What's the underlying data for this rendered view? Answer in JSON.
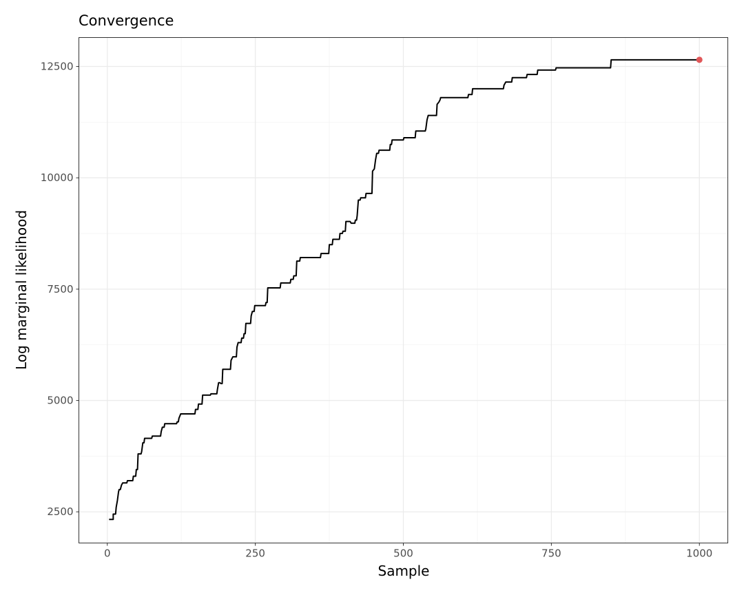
{
  "chart_data": {
    "type": "line",
    "title": "Convergence",
    "xlabel": "Sample",
    "ylabel": "Log marginal likelihood",
    "xlim": [
      -48,
      1048
    ],
    "ylim": [
      1800,
      13150
    ],
    "x_ticks": [
      0,
      250,
      500,
      750,
      1000
    ],
    "y_ticks": [
      2500,
      5000,
      7500,
      10000,
      12500
    ],
    "grid": true,
    "line_color": "#000000",
    "highlight_color": "#E15759",
    "series": [
      {
        "style": "step",
        "points": [
          [
            3,
            2330
          ],
          [
            10,
            2330
          ],
          [
            10,
            2450
          ],
          [
            14,
            2450
          ],
          [
            15,
            2600
          ],
          [
            17,
            2750
          ],
          [
            19,
            2950
          ],
          [
            20,
            3000
          ],
          [
            22,
            3000
          ],
          [
            24,
            3100
          ],
          [
            26,
            3150
          ],
          [
            33,
            3150
          ],
          [
            34,
            3200
          ],
          [
            43,
            3200
          ],
          [
            44,
            3300
          ],
          [
            48,
            3300
          ],
          [
            49,
            3450
          ],
          [
            51,
            3450
          ],
          [
            52,
            3800
          ],
          [
            57,
            3800
          ],
          [
            58,
            3850
          ],
          [
            60,
            4050
          ],
          [
            62,
            4050
          ],
          [
            63,
            4150
          ],
          [
            75,
            4150
          ],
          [
            76,
            4200
          ],
          [
            90,
            4200
          ],
          [
            91,
            4300
          ],
          [
            93,
            4400
          ],
          [
            96,
            4400
          ],
          [
            97,
            4480
          ],
          [
            117,
            4480
          ],
          [
            118,
            4520
          ],
          [
            120,
            4520
          ],
          [
            121,
            4600
          ],
          [
            124,
            4700
          ],
          [
            148,
            4700
          ],
          [
            149,
            4800
          ],
          [
            153,
            4800
          ],
          [
            154,
            4920
          ],
          [
            160,
            4920
          ],
          [
            161,
            5120
          ],
          [
            174,
            5120
          ],
          [
            175,
            5150
          ],
          [
            185,
            5150
          ],
          [
            186,
            5250
          ],
          [
            188,
            5400
          ],
          [
            190,
            5400
          ],
          [
            192,
            5380
          ],
          [
            194,
            5380
          ],
          [
            195,
            5700
          ],
          [
            208,
            5700
          ],
          [
            209,
            5900
          ],
          [
            212,
            5980
          ],
          [
            218,
            5980
          ],
          [
            219,
            6200
          ],
          [
            221,
            6300
          ],
          [
            226,
            6300
          ],
          [
            227,
            6400
          ],
          [
            230,
            6400
          ],
          [
            231,
            6500
          ],
          [
            233,
            6500
          ],
          [
            234,
            6730
          ],
          [
            242,
            6730
          ],
          [
            243,
            6900
          ],
          [
            245,
            7000
          ],
          [
            248,
            7000
          ],
          [
            249,
            7130
          ],
          [
            267,
            7130
          ],
          [
            268,
            7200
          ],
          [
            270,
            7200
          ],
          [
            271,
            7530
          ],
          [
            292,
            7530
          ],
          [
            293,
            7640
          ],
          [
            309,
            7640
          ],
          [
            310,
            7720
          ],
          [
            314,
            7720
          ],
          [
            315,
            7800
          ],
          [
            319,
            7800
          ],
          [
            320,
            8130
          ],
          [
            325,
            8130
          ],
          [
            326,
            8210
          ],
          [
            360,
            8210
          ],
          [
            361,
            8300
          ],
          [
            374,
            8300
          ],
          [
            375,
            8500
          ],
          [
            380,
            8500
          ],
          [
            381,
            8620
          ],
          [
            392,
            8620
          ],
          [
            393,
            8750
          ],
          [
            397,
            8750
          ],
          [
            398,
            8800
          ],
          [
            402,
            8800
          ],
          [
            403,
            9020
          ],
          [
            410,
            9020
          ],
          [
            412,
            8980
          ],
          [
            418,
            8980
          ],
          [
            419,
            9050
          ],
          [
            421,
            9050
          ],
          [
            422,
            9150
          ],
          [
            424,
            9500
          ],
          [
            427,
            9500
          ],
          [
            428,
            9550
          ],
          [
            436,
            9550
          ],
          [
            437,
            9650
          ],
          [
            447,
            9650
          ],
          [
            448,
            10150
          ],
          [
            451,
            10200
          ],
          [
            453,
            10400
          ],
          [
            455,
            10550
          ],
          [
            458,
            10550
          ],
          [
            459,
            10620
          ],
          [
            477,
            10620
          ],
          [
            478,
            10750
          ],
          [
            480,
            10750
          ],
          [
            481,
            10850
          ],
          [
            500,
            10850
          ],
          [
            501,
            10900
          ],
          [
            520,
            10900
          ],
          [
            521,
            11050
          ],
          [
            537,
            11050
          ],
          [
            538,
            11100
          ],
          [
            540,
            11300
          ],
          [
            542,
            11400
          ],
          [
            556,
            11400
          ],
          [
            557,
            11650
          ],
          [
            560,
            11700
          ],
          [
            562,
            11750
          ],
          [
            563,
            11800
          ],
          [
            609,
            11800
          ],
          [
            610,
            11870
          ],
          [
            616,
            11870
          ],
          [
            617,
            12000
          ],
          [
            669,
            12000
          ],
          [
            670,
            12080
          ],
          [
            673,
            12150
          ],
          [
            683,
            12150
          ],
          [
            684,
            12250
          ],
          [
            708,
            12250
          ],
          [
            709,
            12320
          ],
          [
            726,
            12320
          ],
          [
            727,
            12420
          ],
          [
            757,
            12420
          ],
          [
            758,
            12470
          ],
          [
            850,
            12470
          ],
          [
            851,
            12650
          ],
          [
            1000,
            12650
          ]
        ]
      }
    ],
    "highlight_point": [
      1000,
      12650
    ]
  }
}
